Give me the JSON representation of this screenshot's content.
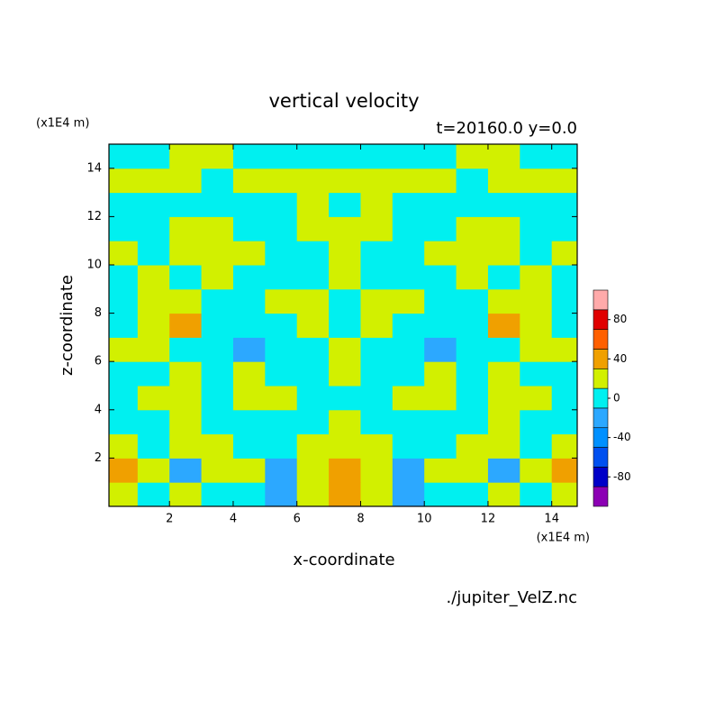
{
  "chart_data": {
    "type": "contour",
    "title": "vertical velocity",
    "subtitle": "t=20160.0 y=0.0",
    "x_label": "x-coordinate",
    "y_label": "z-coordinate",
    "x_unit": "(x1E4 m)",
    "y_unit": "(x1E4 m)",
    "source": "./jupiter_VelZ.nc",
    "x": [
      0.5,
      1.5,
      2.5,
      3.5,
      4.5,
      5.5,
      6.5,
      7.5,
      8.5,
      9.5,
      10.5,
      11.5,
      12.5,
      13.5,
      14.5
    ],
    "z": [
      0.5,
      1.5,
      2.5,
      3.5,
      4.5,
      5.5,
      6.5,
      7.5,
      8.5,
      9.5,
      10.5,
      11.5,
      12.5,
      13.5,
      14.5
    ],
    "values": [
      [
        10,
        -10,
        10,
        -10,
        -10,
        -30,
        10,
        30,
        10,
        -30,
        -10,
        -10,
        10,
        -10,
        10
      ],
      [
        30,
        10,
        -30,
        10,
        10,
        -30,
        10,
        30,
        10,
        -30,
        10,
        10,
        -30,
        10,
        30
      ],
      [
        10,
        -10,
        10,
        10,
        -10,
        -10,
        10,
        10,
        10,
        -10,
        -10,
        10,
        10,
        -10,
        10
      ],
      [
        -10,
        -10,
        10,
        -10,
        -10,
        -10,
        -10,
        10,
        -10,
        -10,
        -10,
        -10,
        10,
        -10,
        -10
      ],
      [
        -10,
        10,
        10,
        -10,
        10,
        10,
        -10,
        -10,
        -10,
        10,
        10,
        -10,
        10,
        10,
        -10
      ],
      [
        -10,
        -10,
        10,
        -10,
        10,
        -10,
        -10,
        10,
        -10,
        -10,
        10,
        -10,
        10,
        -10,
        -10
      ],
      [
        10,
        10,
        -10,
        -10,
        -30,
        -10,
        -10,
        10,
        -10,
        -10,
        -30,
        -10,
        -10,
        10,
        10
      ],
      [
        -10,
        10,
        30,
        -10,
        -10,
        -10,
        10,
        -10,
        10,
        -10,
        -10,
        -10,
        30,
        10,
        -10
      ],
      [
        -10,
        10,
        10,
        -10,
        -10,
        10,
        10,
        -10,
        10,
        10,
        -10,
        -10,
        10,
        10,
        -10
      ],
      [
        -10,
        10,
        -10,
        10,
        -10,
        -10,
        -10,
        10,
        -10,
        -10,
        -10,
        10,
        -10,
        10,
        -10
      ],
      [
        10,
        -10,
        10,
        10,
        10,
        -10,
        -10,
        10,
        -10,
        -10,
        10,
        10,
        10,
        -10,
        10
      ],
      [
        -10,
        -10,
        10,
        10,
        -10,
        -10,
        10,
        10,
        10,
        -10,
        -10,
        10,
        10,
        -10,
        -10
      ],
      [
        -10,
        -10,
        -10,
        -10,
        -10,
        -10,
        10,
        -10,
        10,
        -10,
        -10,
        -10,
        -10,
        -10,
        -10
      ],
      [
        10,
        10,
        10,
        -10,
        10,
        10,
        10,
        10,
        10,
        10,
        10,
        -10,
        10,
        10,
        10
      ],
      [
        -10,
        -10,
        10,
        10,
        -10,
        -10,
        -10,
        -10,
        -10,
        -10,
        -10,
        10,
        10,
        -10,
        -10
      ]
    ],
    "xlim": [
      0.1,
      14.8
    ],
    "ylim": [
      0,
      15
    ],
    "xticks": [
      2,
      4,
      6,
      8,
      10,
      12,
      14
    ],
    "yticks": [
      2,
      4,
      6,
      8,
      10,
      12,
      14
    ],
    "clim": [
      -110,
      110
    ],
    "cstep": 20,
    "colors": [
      "#8c00b4",
      "#0000c8",
      "#0050f0",
      "#0090ff",
      "#2ca8ff",
      "#00f0f0",
      "#d2f000",
      "#f0a000",
      "#ff6000",
      "#e00000",
      "#ffaaaa"
    ],
    "cticks": [
      -80,
      -40,
      0,
      40,
      80
    ]
  }
}
